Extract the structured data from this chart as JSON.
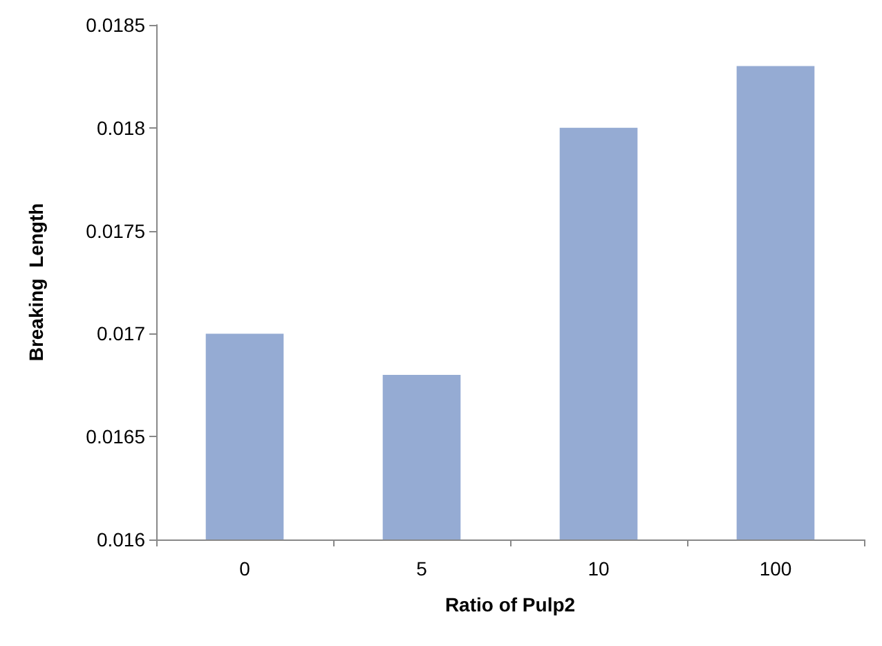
{
  "chart_data": {
    "type": "bar",
    "xlabel": "Ratio of Pulp2",
    "ylabel": "Breaking  Length",
    "categories": [
      "0",
      "5",
      "10",
      "100"
    ],
    "values": [
      0.017,
      0.0168,
      0.018,
      0.0183
    ],
    "color": "#95abd3",
    "ylim": [
      0.016,
      0.0185
    ],
    "yticks": [
      0.016,
      0.0165,
      0.017,
      0.0175,
      0.018,
      0.0185
    ],
    "grid": false
  }
}
